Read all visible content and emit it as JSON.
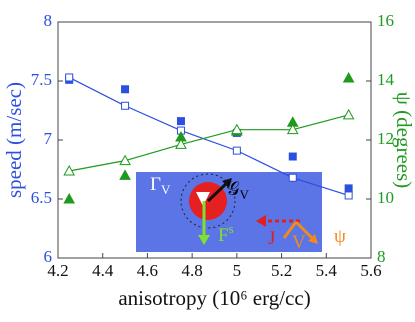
{
  "chart_data": {
    "type": "line",
    "xlabel": "anisotropy (10⁶ erg/cc)",
    "ylabel": "speed (m/sec)",
    "y2label": "ψ (degrees)",
    "x": [
      4.25,
      4.5,
      4.75,
      5.0,
      5.25,
      5.5
    ],
    "xlim": [
      4.2,
      5.6
    ],
    "xticks": [
      4.2,
      4.4,
      4.6,
      4.8,
      5,
      5.2,
      5.4,
      5.6
    ],
    "ylim": [
      6,
      8
    ],
    "yticks": [
      6,
      6.5,
      7,
      7.5,
      8
    ],
    "y2lim": [
      8,
      16
    ],
    "y2ticks": [
      8,
      10,
      12,
      14,
      16
    ],
    "series": [
      {
        "color": "#2c4fe0",
        "marker": "square",
        "filled": true,
        "line": false,
        "values": [
          7.51,
          7.43,
          7.16,
          7.06,
          6.86,
          6.59
        ]
      },
      {
        "color": "#2c4fe0",
        "marker": "square",
        "filled": false,
        "line": true,
        "values": [
          7.53,
          7.29,
          7.08,
          6.91,
          6.68,
          6.53
        ]
      },
      {
        "color": "#1e9a1e",
        "marker": "triangle",
        "filled": true,
        "line": false,
        "axis": "y2",
        "values": [
          10.0,
          10.8,
          12.1,
          12.3,
          12.6,
          14.1
        ]
      },
      {
        "color": "#1e9a1e",
        "marker": "triangle",
        "filled": false,
        "line": true,
        "axis": "y2",
        "values": [
          10.95,
          11.3,
          11.85,
          12.35,
          12.35,
          12.85
        ]
      }
    ],
    "annotations": [
      {
        "text": "Γ",
        "sub": "V"
      },
      {
        "text": "𝒢",
        "sub": "V"
      },
      {
        "text": "F",
        "sup": "s"
      },
      {
        "text": "J"
      },
      {
        "text": "V"
      },
      {
        "text": "ψ"
      }
    ]
  }
}
